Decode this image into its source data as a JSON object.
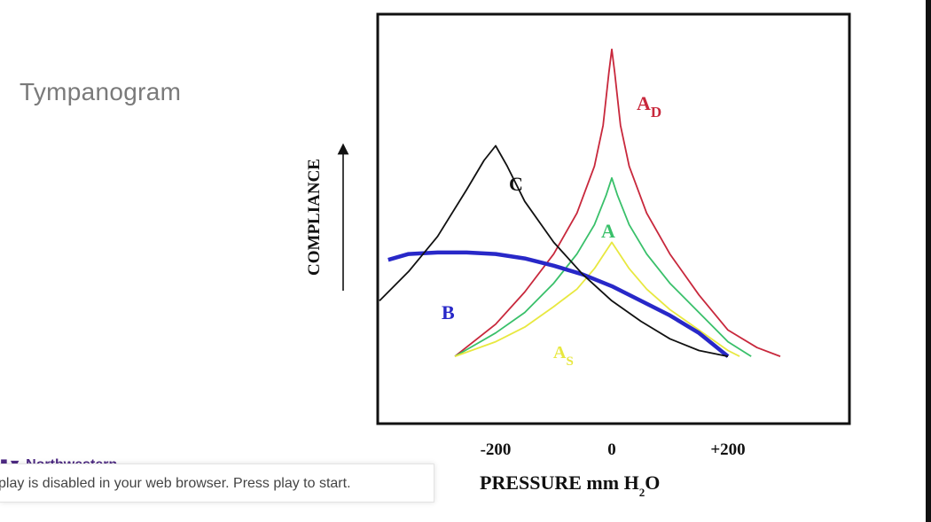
{
  "slide": {
    "title": "Tympanogram",
    "logo_text": "Northwestern",
    "autoplay_notice": "play is disabled in your web browser. Press play to start."
  },
  "chart_data": {
    "type": "line",
    "title": "",
    "xlabel_main": "PRESSURE mm H",
    "xlabel_sub": "2",
    "xlabel_tail": "O",
    "ylabel": "COMPLIANCE",
    "xlim": [
      -400,
      400
    ],
    "ylim": [
      0,
      100
    ],
    "x_ticks": [
      {
        "value": -200,
        "label": "-200"
      },
      {
        "value": 0,
        "label": "0"
      },
      {
        "value": 200,
        "label": "+200"
      }
    ],
    "grid": false,
    "series": [
      {
        "name": "AD",
        "label_main": "A",
        "label_sub": "D",
        "color": "#c8283c",
        "points": [
          [
            -270,
            3
          ],
          [
            -200,
            14
          ],
          [
            -150,
            25
          ],
          [
            -100,
            38
          ],
          [
            -60,
            52
          ],
          [
            -30,
            68
          ],
          [
            -15,
            82
          ],
          [
            -5,
            100
          ],
          [
            0,
            108
          ],
          [
            5,
            100
          ],
          [
            15,
            82
          ],
          [
            30,
            68
          ],
          [
            60,
            52
          ],
          [
            100,
            38
          ],
          [
            150,
            24
          ],
          [
            200,
            12
          ],
          [
            250,
            6
          ],
          [
            290,
            3
          ]
        ]
      },
      {
        "name": "A",
        "label_main": "A",
        "label_sub": "",
        "color": "#39c06a",
        "points": [
          [
            -270,
            3
          ],
          [
            -200,
            11
          ],
          [
            -150,
            18
          ],
          [
            -100,
            28
          ],
          [
            -60,
            38
          ],
          [
            -30,
            48
          ],
          [
            -10,
            58
          ],
          [
            0,
            64
          ],
          [
            10,
            58
          ],
          [
            30,
            48
          ],
          [
            60,
            38
          ],
          [
            100,
            28
          ],
          [
            150,
            18
          ],
          [
            200,
            8
          ],
          [
            240,
            3
          ]
        ]
      },
      {
        "name": "AS",
        "label_main": "A",
        "label_sub": "S",
        "color": "#e8e840",
        "points": [
          [
            -270,
            3
          ],
          [
            -200,
            8
          ],
          [
            -150,
            13
          ],
          [
            -100,
            20
          ],
          [
            -60,
            26
          ],
          [
            -30,
            33
          ],
          [
            -10,
            39
          ],
          [
            0,
            42
          ],
          [
            10,
            39
          ],
          [
            30,
            33
          ],
          [
            60,
            26
          ],
          [
            100,
            19
          ],
          [
            150,
            12
          ],
          [
            200,
            5
          ],
          [
            220,
            3
          ]
        ]
      },
      {
        "name": "B",
        "label_main": "B",
        "label_sub": "",
        "color": "#2828c8",
        "points": [
          [
            -385,
            36
          ],
          [
            -350,
            38
          ],
          [
            -300,
            38.5
          ],
          [
            -250,
            38.5
          ],
          [
            -200,
            38
          ],
          [
            -150,
            36.5
          ],
          [
            -100,
            34
          ],
          [
            -50,
            31
          ],
          [
            0,
            27
          ],
          [
            50,
            22
          ],
          [
            100,
            17
          ],
          [
            150,
            11
          ],
          [
            200,
            3
          ]
        ]
      },
      {
        "name": "C",
        "label_main": "C",
        "label_sub": "",
        "color": "#111111",
        "points": [
          [
            -400,
            22
          ],
          [
            -350,
            32
          ],
          [
            -300,
            44
          ],
          [
            -250,
            60
          ],
          [
            -220,
            70
          ],
          [
            -200,
            75
          ],
          [
            -180,
            68
          ],
          [
            -150,
            56
          ],
          [
            -100,
            42
          ],
          [
            -50,
            31
          ],
          [
            0,
            22
          ],
          [
            50,
            15
          ],
          [
            100,
            9
          ],
          [
            150,
            5
          ],
          [
            200,
            3
          ]
        ]
      }
    ]
  }
}
